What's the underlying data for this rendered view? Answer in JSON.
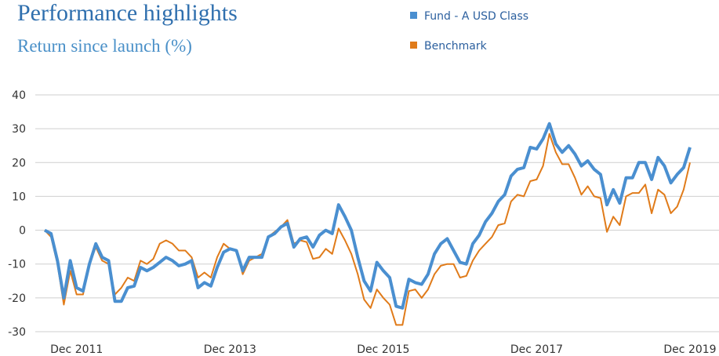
{
  "chart_data": {
    "type": "line",
    "title": "Performance highlights",
    "subtitle": "Return since launch (%)",
    "categories": [
      null,
      null,
      null,
      null,
      null,
      "Dec 2011",
      null,
      null,
      null,
      null,
      null,
      null,
      null,
      null,
      null,
      null,
      null,
      null,
      null,
      null,
      null,
      null,
      null,
      null,
      null,
      null,
      null,
      null,
      null,
      "Dec 2013",
      null,
      null,
      null,
      null,
      null,
      null,
      null,
      null,
      null,
      null,
      null,
      null,
      null,
      null,
      null,
      null,
      null,
      null,
      null,
      null,
      null,
      null,
      null,
      "Dec 2015",
      null,
      null,
      null,
      null,
      null,
      null,
      null,
      null,
      null,
      null,
      null,
      null,
      null,
      null,
      null,
      null,
      null,
      null,
      null,
      null,
      null,
      null,
      null,
      "Dec 2017",
      null,
      null,
      null,
      null,
      null,
      null,
      null,
      null,
      null,
      null,
      null,
      null,
      null,
      null,
      null,
      null,
      null,
      null,
      null,
      null,
      null,
      null,
      null,
      "Dec 2019"
    ],
    "series": [
      {
        "name": "Fund - A USD Class",
        "color": "#4a8fd0",
        "values": [
          0,
          -1,
          -9,
          -20,
          -9,
          -17,
          -18,
          -10,
          -4,
          -8,
          -9,
          -21,
          -21,
          -17,
          -16.5,
          -11,
          -12,
          -11,
          -9.5,
          -8,
          -9,
          -10.5,
          -10,
          -9,
          -17,
          -15.5,
          -16.5,
          -11,
          -6.5,
          -5.5,
          -6,
          -12,
          -8,
          -8,
          -8,
          -2,
          -1,
          1,
          2,
          -5,
          -2.5,
          -2,
          -5,
          -1.5,
          0,
          -1,
          7.5,
          4,
          0,
          -8,
          -15,
          -18,
          -9.5,
          -12,
          -14,
          -22.5,
          -23,
          -14.5,
          -15.5,
          -16,
          -13,
          -7,
          -4,
          -2.5,
          -6,
          -9.5,
          -10,
          -4,
          -1.5,
          2.5,
          5,
          8.5,
          10.5,
          16,
          18,
          18.5,
          24.5,
          24,
          27,
          31.5,
          25.5,
          23,
          25,
          22.5,
          19,
          20.5,
          18,
          16.5,
          7.5,
          12,
          8,
          15.5,
          15.5,
          20,
          20,
          15,
          21.5,
          19,
          14,
          16.5,
          18.5,
          24.5
        ]
      },
      {
        "name": "Benchmark",
        "color": "#e07b1a",
        "values": [
          0,
          -2,
          -10,
          -22,
          -12,
          -19,
          -19,
          -10,
          -5,
          -9,
          -10,
          -19,
          -17,
          -14,
          -15,
          -9,
          -10,
          -8.5,
          -4,
          -3,
          -4,
          -6,
          -6,
          -8,
          -14,
          -12.5,
          -14,
          -8,
          -4,
          -5.5,
          -6,
          -13,
          -9,
          -8,
          -7,
          -2,
          -0.5,
          1,
          3,
          -4,
          -3,
          -3.5,
          -8.5,
          -8,
          -5.5,
          -7,
          0.5,
          -3,
          -7,
          -13,
          -20.5,
          -23,
          -17.5,
          -20,
          -22,
          -28,
          -28,
          -18,
          -17.5,
          -20,
          -17.5,
          -13,
          -10.5,
          -10,
          -10,
          -14,
          -13.5,
          -9,
          -6,
          -4,
          -2,
          1.5,
          2,
          8.5,
          10.5,
          10,
          14.5,
          15,
          19,
          28.5,
          23,
          19.5,
          19.5,
          15.5,
          10.5,
          13,
          10,
          9.5,
          -0.5,
          4,
          1.5,
          10,
          11,
          11,
          13.5,
          5,
          12,
          10.5,
          5,
          7,
          12,
          20
        ]
      }
    ],
    "ylim": [
      -30,
      40
    ],
    "yticks": [
      -30,
      -20,
      -10,
      0,
      10,
      20,
      30,
      40
    ],
    "grid": true
  }
}
